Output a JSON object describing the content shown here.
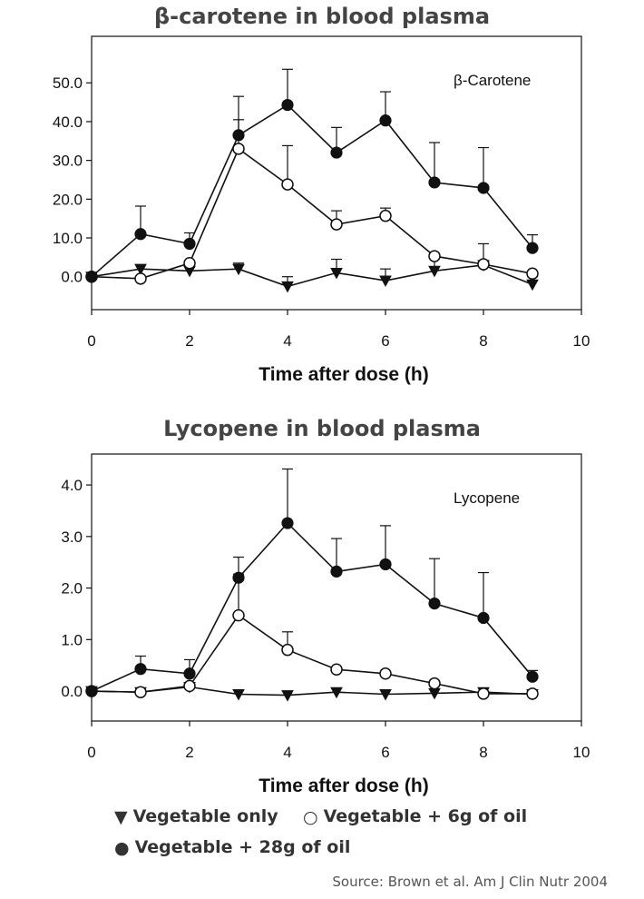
{
  "chart_data": [
    {
      "type": "line",
      "title": "β-carotene in blood plasma",
      "inset_label": "β-Carotene",
      "xlabel": "Time after dose (h)",
      "ylabel": "",
      "xlim": [
        0,
        10
      ],
      "ylim": [
        -8.5,
        62
      ],
      "x_ticks": [
        0,
        2,
        4,
        6,
        8,
        10
      ],
      "x_tick_labels": [
        "0",
        "2",
        "4",
        "6",
        "8",
        "10"
      ],
      "y_ticks": [
        0,
        10,
        20,
        30,
        40,
        50
      ],
      "y_tick_labels": [
        "0.0",
        "10.0",
        "20.0",
        "30.0",
        "40.0",
        "50.0"
      ],
      "grid": false,
      "series": [
        {
          "name": "Vegetable only",
          "marker": "triangle-down",
          "x": [
            0,
            1,
            2,
            3,
            4,
            5,
            6,
            7,
            8,
            9
          ],
          "y": [
            0.0,
            2.0,
            1.5,
            2.0,
            -2.5,
            1.0,
            -1.0,
            1.5,
            3.0,
            -2.0
          ],
          "error": [
            0.3,
            1.0,
            1.0,
            1.5,
            2.5,
            3.5,
            3.0,
            4.5,
            5.5,
            2.0
          ]
        },
        {
          "name": "Vegetable + 6g of oil",
          "marker": "circle-open",
          "x": [
            0,
            1,
            2,
            3,
            4,
            5,
            6,
            7,
            8,
            9
          ],
          "y": [
            0.0,
            -0.5,
            3.5,
            33.0,
            23.8,
            13.5,
            15.7,
            5.3,
            3.2,
            0.8
          ],
          "error": [
            0.3,
            0.0,
            0.0,
            13.5,
            10.0,
            3.5,
            2.0,
            0.0,
            0.0,
            0.0
          ]
        },
        {
          "name": "Vegetable + 28g of oil",
          "marker": "circle-filled",
          "x": [
            0,
            1,
            2,
            3,
            4,
            5,
            6,
            7,
            8,
            9
          ],
          "y": [
            0.0,
            11.0,
            8.5,
            36.5,
            44.3,
            32.0,
            40.3,
            24.3,
            22.9,
            7.4
          ],
          "error": [
            0.0,
            7.2,
            2.8,
            4.0,
            9.2,
            6.5,
            7.4,
            10.3,
            10.4,
            3.4
          ]
        }
      ]
    },
    {
      "type": "line",
      "title": "Lycopene in blood plasma",
      "inset_label": "Lycopene",
      "xlabel": "Time after dose (h)",
      "ylabel": "",
      "xlim": [
        0,
        10
      ],
      "ylim": [
        -0.58,
        4.6
      ],
      "x_ticks": [
        0,
        2,
        4,
        6,
        8,
        10
      ],
      "x_tick_labels": [
        "0",
        "2",
        "4",
        "6",
        "8",
        "10"
      ],
      "y_ticks": [
        0,
        1,
        2,
        3,
        4
      ],
      "y_tick_labels": [
        "0.0",
        "1.0",
        "2.0",
        "3.0",
        "4.0"
      ],
      "grid": false,
      "series": [
        {
          "name": "Vegetable only",
          "marker": "triangle-down",
          "x": [
            0,
            1,
            2,
            3,
            4,
            5,
            6,
            7,
            8,
            9
          ],
          "y": [
            0.0,
            -0.02,
            0.08,
            -0.06,
            -0.08,
            -0.02,
            -0.06,
            -0.04,
            -0.02,
            -0.06
          ],
          "error": [
            0.0,
            0.0,
            0.0,
            0.0,
            0.0,
            0.0,
            0.0,
            0.0,
            0.0,
            0.0
          ]
        },
        {
          "name": "Vegetable + 6g of oil",
          "marker": "circle-open",
          "x": [
            0,
            1,
            2,
            3,
            4,
            5,
            6,
            7,
            8,
            9
          ],
          "y": [
            0.0,
            -0.02,
            0.1,
            1.47,
            0.8,
            0.42,
            0.34,
            0.15,
            -0.05,
            -0.05
          ],
          "error": [
            0.0,
            0.0,
            0.0,
            0.8,
            0.35,
            0.0,
            0.0,
            0.0,
            0.0,
            0.0
          ]
        },
        {
          "name": "Vegetable + 28g of oil",
          "marker": "circle-filled",
          "x": [
            0,
            1,
            2,
            3,
            4,
            5,
            6,
            7,
            8,
            9
          ],
          "y": [
            0.0,
            0.43,
            0.34,
            2.2,
            3.26,
            2.32,
            2.46,
            1.7,
            1.42,
            0.28
          ],
          "error": [
            0.0,
            0.25,
            0.27,
            0.4,
            1.05,
            0.64,
            0.75,
            0.87,
            0.88,
            0.12
          ]
        }
      ]
    }
  ],
  "legend": {
    "veg_only": "Vegetable only",
    "veg_6g": "Vegetable + 6g of oil",
    "veg_28g": "Vegetable + 28g of oil",
    "veg_only_symbol": "▼",
    "veg_6g_symbol": "○",
    "veg_28g_symbol": "●"
  },
  "source": "Source: Brown et al. Am J Clin Nutr 2004"
}
